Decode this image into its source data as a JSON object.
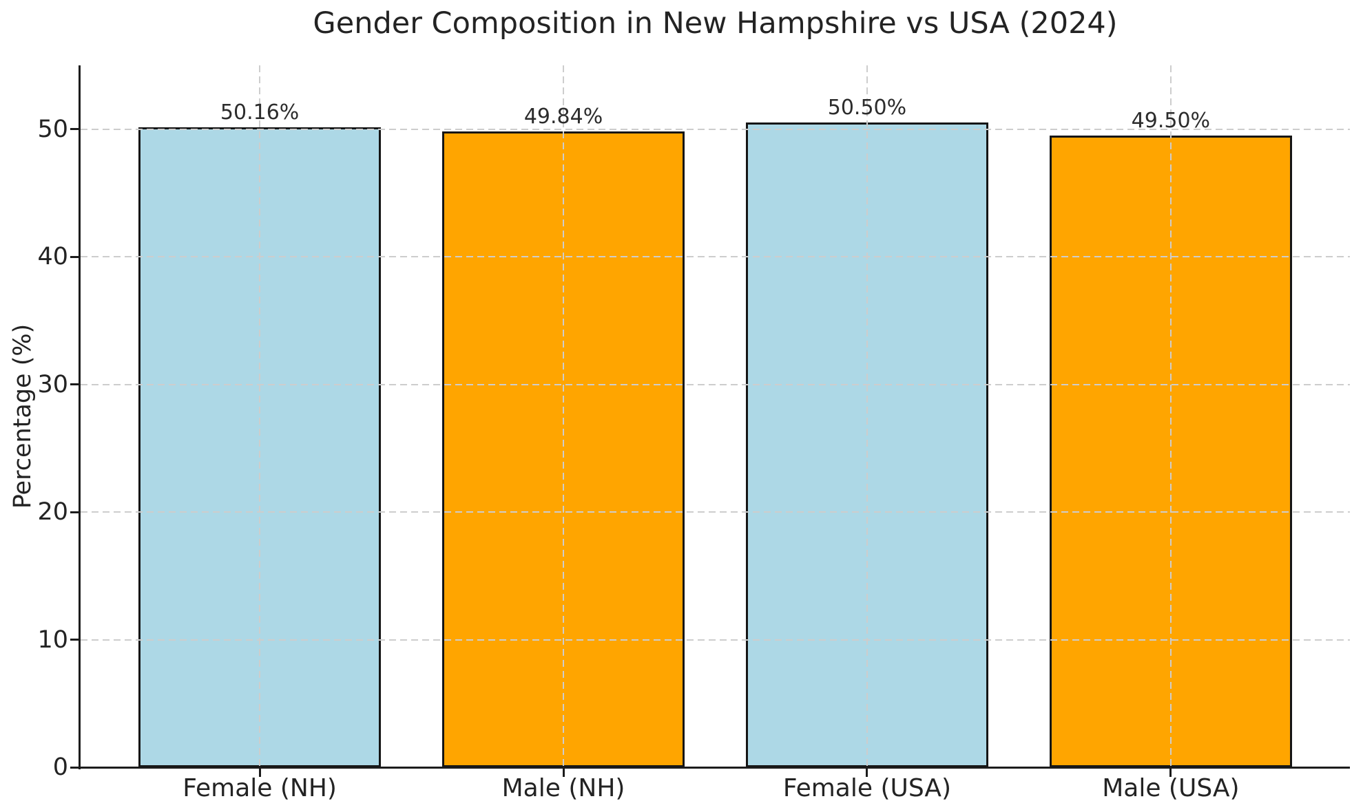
{
  "chart_data": {
    "type": "bar",
    "title": "Gender Composition in New Hampshire vs USA (2024)",
    "xlabel": "",
    "ylabel": "Percentage (%)",
    "categories": [
      "Female (NH)",
      "Male (NH)",
      "Female (USA)",
      "Male (USA)"
    ],
    "values": [
      50.16,
      49.84,
      50.5,
      49.5
    ],
    "value_labels": [
      "50.16%",
      "49.84%",
      "50.50%",
      "49.50%"
    ],
    "bar_colors": [
      "#ADD8E6",
      "#FFA500",
      "#ADD8E6",
      "#FFA500"
    ],
    "bar_edge_color": "#151515",
    "ylim": [
      0,
      55
    ],
    "yticks": [
      0,
      10,
      20,
      30,
      40,
      50
    ],
    "grid": "dashed, horizontal and vertical, drawn above bars",
    "grid_color": "#cdcdcd",
    "legend": "none",
    "background": "#ffffff"
  }
}
